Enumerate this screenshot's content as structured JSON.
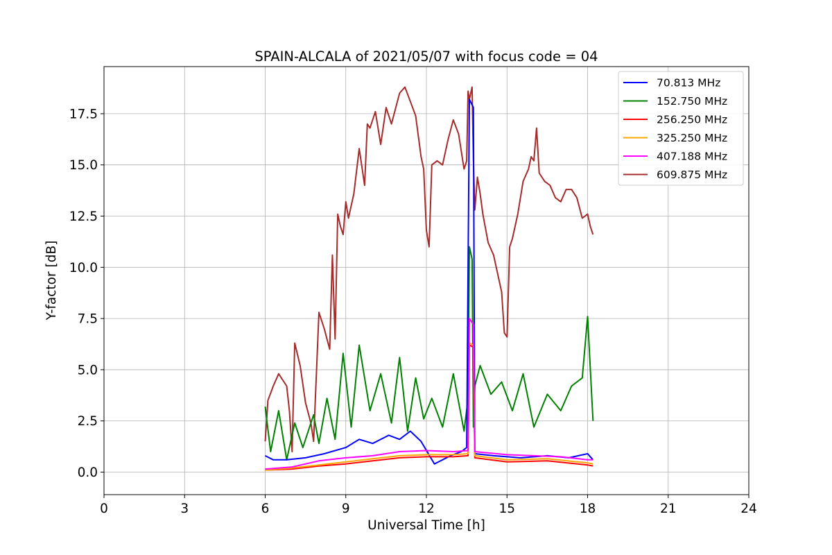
{
  "chart_data": {
    "type": "line",
    "title": "SPAIN-ALCALA of 2021/05/07 with focus code = 04",
    "xlabel": "Universal Time [h]",
    "ylabel": "Y-factor [dB]",
    "xlim": [
      0,
      24
    ],
    "ylim": [
      -1.1,
      19.8
    ],
    "xticks": [
      0,
      3,
      6,
      9,
      12,
      15,
      18,
      21,
      24
    ],
    "xtick_labels": [
      "0",
      "3",
      "6",
      "9",
      "12",
      "15",
      "18",
      "21",
      "24"
    ],
    "yticks": [
      0,
      2.5,
      5,
      7.5,
      10,
      12.5,
      15,
      17.5
    ],
    "ytick_labels": [
      "0.0",
      "2.5",
      "5.0",
      "7.5",
      "10.0",
      "12.5",
      "15.0",
      "17.5"
    ],
    "grid": true,
    "legend_position": "top-right",
    "series": [
      {
        "name": " 70.813 MHz",
        "color": "#0000ff",
        "x": [
          6.0,
          6.3,
          6.8,
          7.5,
          8.2,
          9.0,
          9.5,
          10.0,
          10.6,
          11.0,
          11.4,
          11.8,
          12.3,
          12.9,
          13.3,
          13.5,
          13.6,
          13.75,
          13.8,
          14.5,
          15.5,
          16.5,
          17.3,
          18.0,
          18.2
        ],
        "y": [
          0.8,
          0.6,
          0.6,
          0.7,
          0.9,
          1.2,
          1.6,
          1.4,
          1.8,
          1.6,
          2.0,
          1.5,
          0.4,
          0.8,
          1.0,
          1.2,
          18.2,
          17.8,
          0.9,
          0.8,
          0.7,
          0.8,
          0.7,
          0.9,
          0.6
        ]
      },
      {
        "name": "152.750 MHz",
        "color": "#008000",
        "x": [
          6.0,
          6.2,
          6.5,
          6.8,
          7.1,
          7.4,
          7.8,
          8.0,
          8.3,
          8.6,
          8.9,
          9.2,
          9.5,
          9.9,
          10.3,
          10.7,
          11.0,
          11.3,
          11.6,
          11.9,
          12.2,
          12.6,
          13.0,
          13.4,
          13.55,
          13.6,
          13.7,
          13.75,
          13.8,
          14.0,
          14.4,
          14.8,
          15.2,
          15.6,
          16.0,
          16.5,
          17.0,
          17.4,
          17.8,
          18.0,
          18.2
        ],
        "y": [
          3.2,
          1.0,
          3.0,
          0.6,
          2.4,
          1.2,
          2.8,
          1.4,
          3.6,
          1.6,
          5.8,
          2.2,
          6.2,
          3.0,
          4.8,
          2.4,
          5.6,
          2.0,
          4.6,
          2.6,
          3.6,
          2.2,
          4.8,
          2.0,
          3.6,
          11.0,
          10.4,
          2.2,
          4.2,
          5.2,
          3.8,
          4.4,
          3.0,
          4.8,
          2.2,
          3.8,
          3.0,
          4.2,
          4.6,
          7.6,
          2.5
        ]
      },
      {
        "name": "256.250 MHz",
        "color": "#ff0000",
        "x": [
          6.0,
          7.0,
          8.0,
          9.0,
          10.0,
          11.0,
          12.0,
          13.0,
          13.55,
          13.6,
          13.75,
          13.8,
          15.0,
          16.5,
          18.0,
          18.2
        ],
        "y": [
          0.1,
          0.15,
          0.3,
          0.4,
          0.55,
          0.7,
          0.75,
          0.75,
          0.8,
          6.2,
          6.1,
          0.7,
          0.5,
          0.55,
          0.35,
          0.3
        ]
      },
      {
        "name": "325.250 MHz",
        "color": "#ffa500",
        "x": [
          6.0,
          7.0,
          8.0,
          9.0,
          10.0,
          11.0,
          12.0,
          13.0,
          13.55,
          13.6,
          13.75,
          13.8,
          15.0,
          16.5,
          18.0,
          18.2
        ],
        "y": [
          0.1,
          0.2,
          0.35,
          0.5,
          0.65,
          0.8,
          0.85,
          0.85,
          0.9,
          6.3,
          6.2,
          0.8,
          0.6,
          0.65,
          0.45,
          0.4
        ]
      },
      {
        "name": "407.188 MHz",
        "color": "#ff00ff",
        "x": [
          6.0,
          7.0,
          8.0,
          9.0,
          10.0,
          11.0,
          12.0,
          13.0,
          13.55,
          13.6,
          13.75,
          13.8,
          15.0,
          16.0,
          17.0,
          18.0,
          18.2
        ],
        "y": [
          0.15,
          0.25,
          0.55,
          0.7,
          0.8,
          1.0,
          1.05,
          1.0,
          1.05,
          7.5,
          7.2,
          1.0,
          0.85,
          0.8,
          0.75,
          0.6,
          0.6
        ]
      },
      {
        "name": "609.875 MHz",
        "color": "#a52a2a",
        "x": [
          6.0,
          6.1,
          6.3,
          6.5,
          6.8,
          6.9,
          7.0,
          7.1,
          7.3,
          7.5,
          7.7,
          7.8,
          8.0,
          8.2,
          8.4,
          8.5,
          8.6,
          8.7,
          8.8,
          8.9,
          9.0,
          9.1,
          9.3,
          9.5,
          9.7,
          9.8,
          9.9,
          10.1,
          10.3,
          10.5,
          10.7,
          10.9,
          11.0,
          11.2,
          11.4,
          11.6,
          11.8,
          11.9,
          12.0,
          12.1,
          12.2,
          12.4,
          12.6,
          12.8,
          13.0,
          13.2,
          13.4,
          13.5,
          13.55,
          13.6,
          13.7,
          13.75,
          13.8,
          13.9,
          14.0,
          14.1,
          14.3,
          14.5,
          14.7,
          14.8,
          14.9,
          15.0,
          15.1,
          15.2,
          15.4,
          15.6,
          15.8,
          15.9,
          16.0,
          16.1,
          16.2,
          16.4,
          16.6,
          16.8,
          17.0,
          17.2,
          17.4,
          17.6,
          17.8,
          18.0,
          18.1,
          18.2
        ],
        "y": [
          1.5,
          3.5,
          4.2,
          4.8,
          4.2,
          3.0,
          1.0,
          6.3,
          5.2,
          3.4,
          2.4,
          1.5,
          7.8,
          7.0,
          6.0,
          10.6,
          6.5,
          12.6,
          12.0,
          11.6,
          13.2,
          12.4,
          13.6,
          15.8,
          14.0,
          17.0,
          16.8,
          17.6,
          16.0,
          17.8,
          17.0,
          18.0,
          18.5,
          18.8,
          18.1,
          17.4,
          15.4,
          14.8,
          11.8,
          11.0,
          15.0,
          15.2,
          15.0,
          16.2,
          17.2,
          16.5,
          14.8,
          15.2,
          18.6,
          18.2,
          18.8,
          15.2,
          12.8,
          14.4,
          13.6,
          12.6,
          11.2,
          10.6,
          9.4,
          8.8,
          6.8,
          6.6,
          11.0,
          11.4,
          12.6,
          14.2,
          14.8,
          15.4,
          15.2,
          16.8,
          14.6,
          14.2,
          14.0,
          13.4,
          13.2,
          13.8,
          13.8,
          13.4,
          12.4,
          12.6,
          12.0,
          11.6
        ]
      }
    ]
  }
}
